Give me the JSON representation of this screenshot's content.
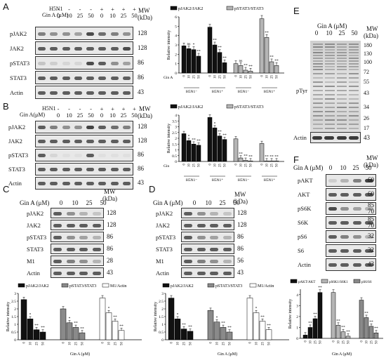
{
  "panels": {
    "A": {
      "letter": "A",
      "h5n1_label": "H5N1",
      "gin_label": "Gin A (μM)",
      "h5n1_signs": [
        "-",
        "-",
        "-",
        "-",
        "+",
        "+",
        "+",
        "+"
      ],
      "gin_values": [
        "0",
        "10",
        "25",
        "50",
        "0",
        "10",
        "25",
        "50"
      ],
      "mw_header": "MW",
      "mw_unit": "(kDa)",
      "rows": [
        {
          "label": "pJAK2",
          "mw": "128"
        },
        {
          "label": "JAK2",
          "mw": "128"
        },
        {
          "label": "pSTAT3",
          "mw": "86"
        },
        {
          "label": "STAT3",
          "mw": "86"
        },
        {
          "label": "Actin",
          "mw": "43"
        }
      ]
    },
    "B": {
      "letter": "B",
      "h5n1_label": "H5N1",
      "gin_label": "Gin A(μM)",
      "h5n1_signs": [
        "-",
        "-",
        "-",
        "-",
        "+",
        "+",
        "+",
        "+"
      ],
      "gin_values": [
        "0",
        "10",
        "25",
        "50",
        "0",
        "10",
        "25",
        "50"
      ],
      "mw_header": "MW",
      "mw_unit": "(kDa)",
      "rows": [
        {
          "label": "pJAK2",
          "mw": "128"
        },
        {
          "label": "JAK2",
          "mw": "128"
        },
        {
          "label": "pSTAT3",
          "mw": "86"
        },
        {
          "label": "STAT3",
          "mw": "86"
        },
        {
          "label": "Actin",
          "mw": "43"
        }
      ]
    },
    "C": {
      "letter": "C",
      "gin_label": "Gin A (μM)",
      "gin_values": [
        "0",
        "10",
        "25",
        "50"
      ],
      "mw_header": "MW",
      "mw_unit": "(kDa)",
      "rows": [
        {
          "label": "pJAK2",
          "mw": "128"
        },
        {
          "label": "JAK2",
          "mw": "128"
        },
        {
          "label": "pSTAT3",
          "mw": "86"
        },
        {
          "label": "STAT3",
          "mw": "86"
        },
        {
          "label": "M1",
          "mw": "28"
        },
        {
          "label": "Actin",
          "mw": "43"
        }
      ]
    },
    "D": {
      "letter": "D",
      "gin_label": "Gin A (μM)",
      "gin_values": [
        "0",
        "10",
        "25",
        "50"
      ],
      "mw_header": "MW",
      "mw_unit": "(kDa)",
      "rows": [
        {
          "label": "pJAK2",
          "mw": "128"
        },
        {
          "label": "JAK2",
          "mw": "128"
        },
        {
          "label": "pSTAT3",
          "mw": "86"
        },
        {
          "label": "STAT3",
          "mw": "86"
        },
        {
          "label": "M1",
          "mw": "56"
        },
        {
          "label": "Actin",
          "mw": "43"
        }
      ]
    },
    "E": {
      "letter": "E",
      "gin_label": "Gin A (μM)",
      "gin_values": [
        "0",
        "10",
        "25",
        "50"
      ],
      "mw_header": "MW",
      "mw_unit": "(kDa)",
      "blot_label": "pTyr",
      "actin_label": "Actin",
      "markers": [
        "180",
        "130",
        "100",
        "72",
        "55",
        "43",
        "34",
        "26",
        "17"
      ],
      "actin_mw": "43"
    },
    "F": {
      "letter": "F",
      "gin_label": "Gin A (μM)",
      "gin_values": [
        "0",
        "10",
        "25",
        "50"
      ],
      "mw_header": "MW",
      "mw_unit": "(kDa)",
      "rows": [
        {
          "label": "pAKT",
          "mw": "60"
        },
        {
          "label": "AKT",
          "mw": "60"
        },
        {
          "label": "pS6K",
          "mw": "85\n70"
        },
        {
          "label": "S6K",
          "mw": "85\n70"
        },
        {
          "label": "pS6",
          "mw": "32"
        },
        {
          "label": "S6",
          "mw": "32"
        },
        {
          "label": "Actin",
          "mw": "43"
        }
      ]
    }
  },
  "chart_data": [
    {
      "id": "A",
      "type": "bar",
      "ylabel": "Relative intensity",
      "legend": [
        "pJAK2/JAK2",
        "pSTAT3/STAT3"
      ],
      "group_labels": [
        "H5N1⁻",
        "H5N1⁺",
        "H5N1⁻",
        "H5N1⁺"
      ],
      "x_label": "Gin A",
      "x_ticks": [
        "0",
        "10",
        "25",
        "50"
      ],
      "ylim": [
        0,
        6
      ],
      "yticks": [
        0,
        1,
        2,
        3,
        4,
        5,
        6
      ],
      "series": [
        {
          "name": "pJAK2/JAK2",
          "values": [
            2.9,
            2.6,
            2.5,
            1.8,
            4.9,
            3.0,
            2.2,
            1.1
          ],
          "sig": [
            "",
            "ns",
            "*",
            "**",
            "",
            "**",
            "**",
            "**"
          ]
        },
        {
          "name": "pSTAT3/STAT3",
          "values": [
            1.0,
            0.8,
            0.3,
            0.2,
            5.8,
            3.8,
            1.2,
            0.8
          ],
          "sig": [
            "",
            "ns",
            "**",
            "**",
            "",
            "**",
            "**",
            "**"
          ]
        }
      ]
    },
    {
      "id": "B",
      "type": "bar",
      "ylabel": "Relative intensity",
      "legend": [
        "pJAK2/JAK2",
        "pSTAT3/STAT3"
      ],
      "group_labels": [
        "H5N1⁻",
        "H5N1⁺",
        "H5N1⁻",
        "H5N1⁺"
      ],
      "x_label": "Gin",
      "x_ticks": [
        "0",
        "10",
        "25",
        "50"
      ],
      "ylim": [
        0,
        4
      ],
      "yticks": [
        0,
        0.5,
        1,
        1.5,
        2,
        2.5,
        3,
        3.5,
        4
      ],
      "series": [
        {
          "name": "pJAK2/JAK2",
          "values": [
            2.4,
            1.8,
            1.5,
            1.4,
            3.8,
            2.9,
            2.2,
            1.9
          ],
          "sig": [
            "",
            "*",
            "**",
            "**",
            "",
            "*",
            "**",
            "**"
          ]
        },
        {
          "name": "pSTAT3/STAT3",
          "values": [
            1.95,
            0.3,
            0.1,
            0.05,
            1.55,
            0.05,
            0.05,
            0.05
          ],
          "sig": [
            "",
            "**",
            "**",
            "**",
            "",
            "**",
            "**",
            "**"
          ]
        }
      ]
    },
    {
      "id": "C",
      "type": "bar",
      "ylabel": "Relative intensity",
      "xlabel": "Gin A (μM)",
      "legend": [
        "pJAK2/JAK2",
        "pSTAT3/STAT3",
        "M1/Actin"
      ],
      "x_ticks": [
        "0",
        "10",
        "25",
        "50"
      ],
      "ylim": [
        0,
        3
      ],
      "yticks": [
        0,
        0.5,
        1,
        1.5,
        2,
        2.5,
        3
      ],
      "series": [
        {
          "name": "pJAK2/JAK2",
          "values": [
            2.6,
            1.35,
            0.65,
            0.5
          ],
          "sig": [
            "",
            "*",
            "**",
            "**"
          ]
        },
        {
          "name": "pSTAT3/STAT3",
          "values": [
            2.0,
            1.1,
            0.8,
            0.45
          ],
          "sig": [
            "",
            "*",
            "**",
            "**"
          ]
        },
        {
          "name": "M1/Actin",
          "values": [
            2.7,
            1.75,
            1.2,
            0.6
          ],
          "sig": [
            "",
            "*",
            "**",
            "**"
          ]
        }
      ]
    },
    {
      "id": "D",
      "type": "bar",
      "ylabel": "Relative intensity",
      "xlabel": "Gin A (μM)",
      "legend": [
        "pJAK2/JAK2",
        "pSTAT3/STAT3",
        "M1/Actin"
      ],
      "x_ticks": [
        "0",
        "10",
        "25",
        "50"
      ],
      "ylim": [
        0,
        3
      ],
      "yticks": [
        0,
        0.5,
        1,
        1.5,
        2,
        2.5,
        3
      ],
      "series": [
        {
          "name": "pJAK2/JAK2",
          "values": [
            2.7,
            1.35,
            0.7,
            0.55
          ],
          "sig": [
            "",
            "*",
            "**",
            "**"
          ]
        },
        {
          "name": "pSTAT3/STAT3",
          "values": [
            1.9,
            1.15,
            0.8,
            0.5
          ],
          "sig": [
            "",
            "*",
            "**",
            "**"
          ]
        },
        {
          "name": "M1/Actin",
          "values": [
            2.7,
            1.75,
            1.2,
            0.65
          ],
          "sig": [
            "",
            "*",
            "**",
            "**"
          ]
        }
      ]
    },
    {
      "id": "F",
      "type": "bar",
      "ylabel": "Relative intensity",
      "xlabel": "Gin A (μM)",
      "legend": [
        "pAKT/AKT",
        "pS6K1/S6K1",
        "pS6/S6"
      ],
      "x_ticks": [
        "0",
        "10",
        "25",
        "50"
      ],
      "ylim": [
        0,
        4.5
      ],
      "yticks": [
        0,
        1,
        2,
        3,
        4
      ],
      "series": [
        {
          "name": "pAKT/AKT",
          "values": [
            0.3,
            1.0,
            1.8,
            4.2
          ],
          "sig": [
            "",
            "**",
            "**",
            "**"
          ]
        },
        {
          "name": "pS6K1/S6K1",
          "values": [
            4.2,
            1.2,
            0.6,
            0.2
          ],
          "sig": [
            "",
            "**",
            "**",
            "**"
          ]
        },
        {
          "name": "pS6/S6",
          "values": [
            3.5,
            1.9,
            1.1,
            0.5
          ],
          "sig": [
            "",
            "**",
            "**",
            "**"
          ]
        }
      ]
    }
  ],
  "colors": {
    "black_bar": "#111111",
    "gray_bar": "#8a8a8a",
    "light_bar": "#b5b5b5",
    "white_bar": "#ffffff"
  }
}
